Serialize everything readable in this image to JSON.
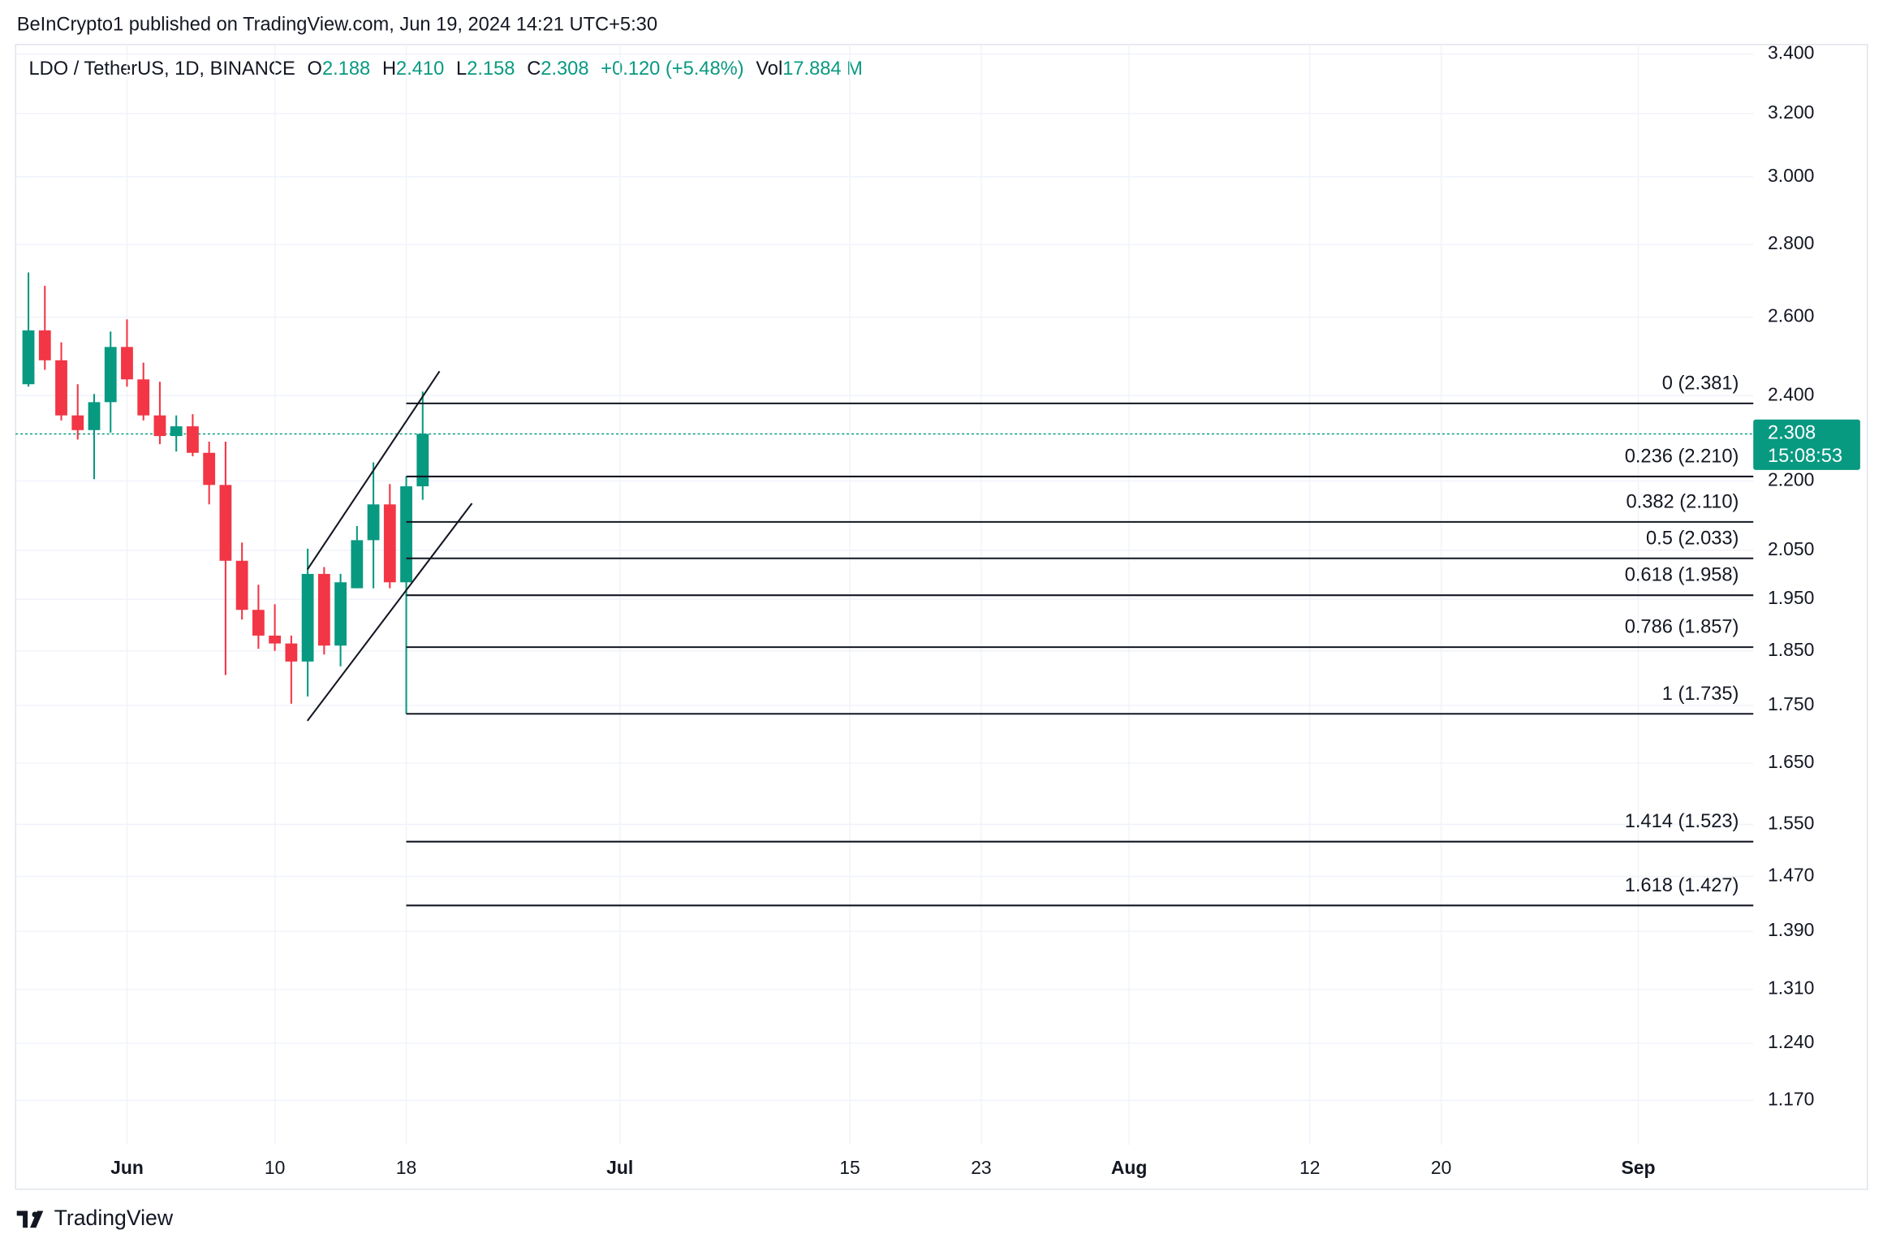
{
  "header": {
    "publisher": "BeInCrypto1 published on TradingView.com, Jun 19, 2024 14:21 UTC+5:30"
  },
  "legend": {
    "symbol": "LDO / TetherUS, 1D, BINANCE",
    "fields": [
      {
        "key": "O",
        "value": "2.188"
      },
      {
        "key": "H",
        "value": "2.410"
      },
      {
        "key": "L",
        "value": "2.158"
      },
      {
        "key": "C",
        "value": "2.308"
      }
    ],
    "change": "+0.120 (+5.48%)",
    "volume": {
      "key": "Vol",
      "value": "17.884 M"
    }
  },
  "footer": {
    "brand": "TradingView"
  },
  "chart_data": {
    "type": "candlestick",
    "log_scale": true,
    "grid": true,
    "up_color": "#089981",
    "down_color": "#f23645",
    "x": [
      "2024-05-26",
      "2024-05-27",
      "2024-05-28",
      "2024-05-29",
      "2024-05-30",
      "2024-05-31",
      "2024-06-01",
      "2024-06-02",
      "2024-06-03",
      "2024-06-04",
      "2024-06-05",
      "2024-06-06",
      "2024-06-07",
      "2024-06-08",
      "2024-06-09",
      "2024-06-10",
      "2024-06-11",
      "2024-06-12",
      "2024-06-13",
      "2024-06-14",
      "2024-06-15",
      "2024-06-16",
      "2024-06-17",
      "2024-06-18",
      "2024-06-19"
    ],
    "open": [
      2.428,
      2.565,
      2.488,
      2.352,
      2.317,
      2.384,
      2.522,
      2.44,
      2.352,
      2.303,
      2.326,
      2.264,
      2.191,
      2.028,
      1.929,
      1.879,
      1.864,
      1.83,
      2.001,
      1.86,
      1.972,
      2.071,
      2.148,
      1.984,
      2.188
    ],
    "high": [
      2.721,
      2.684,
      2.534,
      2.428,
      2.404,
      2.562,
      2.594,
      2.482,
      2.434,
      2.352,
      2.355,
      2.29,
      2.29,
      2.066,
      1.979,
      1.94,
      1.879,
      2.053,
      2.015,
      2.001,
      2.101,
      2.242,
      2.193,
      2.21,
      2.41
    ],
    "low": [
      2.422,
      2.464,
      2.34,
      2.295,
      2.204,
      2.311,
      2.422,
      2.34,
      2.284,
      2.267,
      2.256,
      2.148,
      1.805,
      1.91,
      1.854,
      1.85,
      1.753,
      1.766,
      1.843,
      1.821,
      1.972,
      1.972,
      1.972,
      1.735,
      2.158
    ],
    "close": [
      2.565,
      2.488,
      2.352,
      2.317,
      2.384,
      2.522,
      2.44,
      2.352,
      2.303,
      2.326,
      2.264,
      2.191,
      2.028,
      1.929,
      1.879,
      1.864,
      1.83,
      2.001,
      1.86,
      1.984,
      2.071,
      2.148,
      1.984,
      2.188,
      2.308
    ],
    "xlim": [
      "2024-05-25",
      "2024-09-08"
    ],
    "xticks": [
      {
        "value": "2024-06-01",
        "label": "Jun"
      },
      {
        "value": "2024-06-10",
        "label": "10"
      },
      {
        "value": "2024-06-18",
        "label": "18"
      },
      {
        "value": "2024-07-01",
        "label": "Jul"
      },
      {
        "value": "2024-07-15",
        "label": "15"
      },
      {
        "value": "2024-07-23",
        "label": "23"
      },
      {
        "value": "2024-08-01",
        "label": "Aug"
      },
      {
        "value": "2024-08-12",
        "label": "12"
      },
      {
        "value": "2024-08-20",
        "label": "20"
      },
      {
        "value": "2024-09-01",
        "label": "Sep"
      }
    ],
    "ylim": [
      1.118,
      3.433
    ],
    "yticks": [
      {
        "value": 3.4,
        "label": "3.400"
      },
      {
        "value": 3.2,
        "label": "3.200"
      },
      {
        "value": 3.0,
        "label": "3.000"
      },
      {
        "value": 2.8,
        "label": "2.800"
      },
      {
        "value": 2.6,
        "label": "2.600"
      },
      {
        "value": 2.4,
        "label": "2.400"
      },
      {
        "value": 2.2,
        "label": "2.200"
      },
      {
        "value": 2.05,
        "label": "2.050"
      },
      {
        "value": 1.95,
        "label": "1.950"
      },
      {
        "value": 1.85,
        "label": "1.850"
      },
      {
        "value": 1.75,
        "label": "1.750"
      },
      {
        "value": 1.65,
        "label": "1.650"
      },
      {
        "value": 1.55,
        "label": "1.550"
      },
      {
        "value": 1.47,
        "label": "1.470"
      },
      {
        "value": 1.39,
        "label": "1.390"
      },
      {
        "value": 1.31,
        "label": "1.310"
      },
      {
        "value": 1.24,
        "label": "1.240"
      },
      {
        "value": 1.17,
        "label": "1.170"
      }
    ],
    "fib_levels": [
      {
        "label": "0 (2.381)",
        "value": 2.381
      },
      {
        "label": "0.236 (2.210)",
        "value": 2.21
      },
      {
        "label": "0.382 (2.110)",
        "value": 2.11
      },
      {
        "label": "0.5 (2.033)",
        "value": 2.033
      },
      {
        "label": "0.618 (1.958)",
        "value": 1.958
      },
      {
        "label": "0.786 (1.857)",
        "value": 1.857
      },
      {
        "label": "1 (1.735)",
        "value": 1.735
      },
      {
        "label": "1.414 (1.523)",
        "value": 1.523
      },
      {
        "label": "1.618 (1.427)",
        "value": 1.427
      }
    ],
    "fib_start": "2024-06-18",
    "current_price": {
      "value": 2.308,
      "countdown": "15:08:53",
      "color": "#089981"
    }
  }
}
